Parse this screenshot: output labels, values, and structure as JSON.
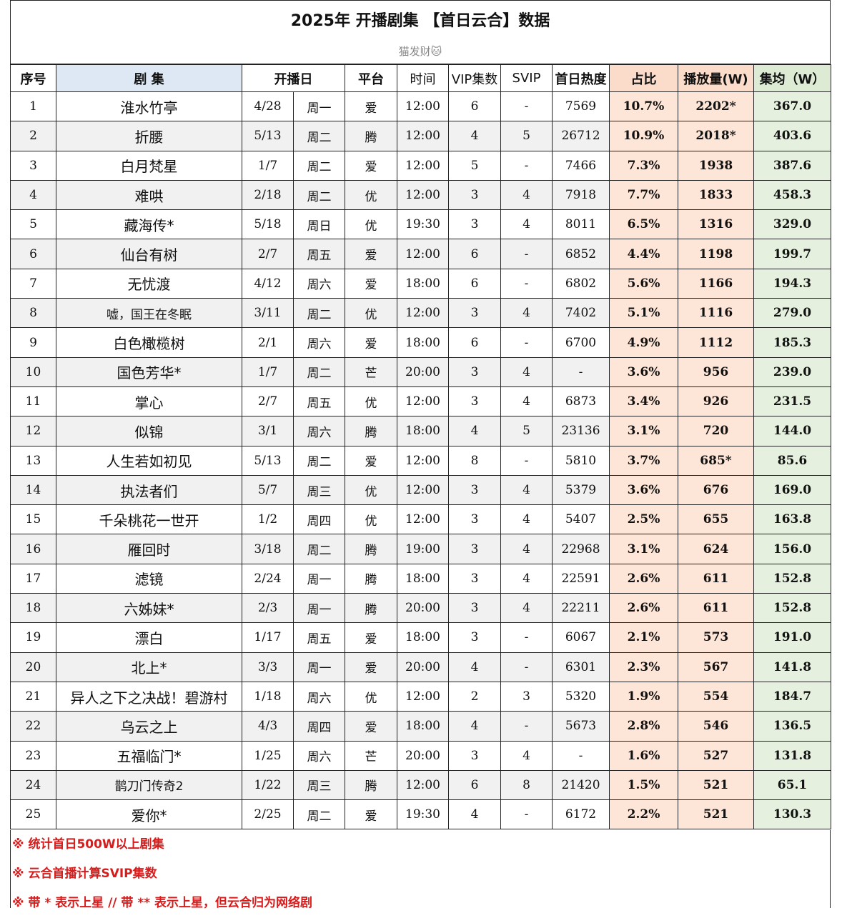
{
  "title": "2025年 开播剧集 【首日云合】数据",
  "author": "猫发财🐱",
  "headers": {
    "no": "序号",
    "name": "剧 集",
    "date": "开播日",
    "plat": "平台",
    "time": "时间",
    "vip": "VIP集数",
    "svip": "SVIP",
    "heat": "首日热度",
    "pct": "占比",
    "play": "播放量(W)",
    "avg": "集均（W）"
  },
  "rows": [
    {
      "no": "1",
      "name": "淮水竹亭",
      "date": "4/28",
      "wd": "周一",
      "plat": "爱",
      "time": "12:00",
      "vip": "6",
      "svip": "-",
      "heat": "7569",
      "pct": "10.7%",
      "play": "2202*",
      "avg": "367.0"
    },
    {
      "no": "2",
      "name": "折腰",
      "date": "5/13",
      "wd": "周二",
      "plat": "腾",
      "time": "12:00",
      "vip": "4",
      "svip": "5",
      "heat": "26712",
      "pct": "10.9%",
      "play": "2018*",
      "avg": "403.6"
    },
    {
      "no": "3",
      "name": "白月梵星",
      "date": "1/7",
      "wd": "周二",
      "plat": "爱",
      "time": "12:00",
      "vip": "5",
      "svip": "-",
      "heat": "7466",
      "pct": "7.3%",
      "play": "1938",
      "avg": "387.6"
    },
    {
      "no": "4",
      "name": "难哄",
      "date": "2/18",
      "wd": "周二",
      "plat": "优",
      "time": "12:00",
      "vip": "3",
      "svip": "4",
      "heat": "7918",
      "pct": "7.7%",
      "play": "1833",
      "avg": "458.3"
    },
    {
      "no": "5",
      "name": "藏海传*",
      "date": "5/18",
      "wd": "周日",
      "plat": "优",
      "time": "19:30",
      "vip": "3",
      "svip": "4",
      "heat": "8011",
      "pct": "6.5%",
      "play": "1316",
      "avg": "329.0"
    },
    {
      "no": "6",
      "name": "仙台有树",
      "date": "2/7",
      "wd": "周五",
      "plat": "爱",
      "time": "12:00",
      "vip": "6",
      "svip": "-",
      "heat": "6852",
      "pct": "4.4%",
      "play": "1198",
      "avg": "199.7"
    },
    {
      "no": "7",
      "name": "无忧渡",
      "date": "4/12",
      "wd": "周六",
      "plat": "爱",
      "time": "18:00",
      "vip": "6",
      "svip": "-",
      "heat": "6802",
      "pct": "5.6%",
      "play": "1166",
      "avg": "194.3"
    },
    {
      "no": "8",
      "name": "嘘，国王在冬眠",
      "date": "3/11",
      "wd": "周二",
      "plat": "优",
      "time": "12:00",
      "vip": "3",
      "svip": "4",
      "heat": "7402",
      "pct": "5.1%",
      "play": "1116",
      "avg": "279.0"
    },
    {
      "no": "9",
      "name": "白色橄榄树",
      "date": "2/1",
      "wd": "周六",
      "plat": "爱",
      "time": "18:00",
      "vip": "6",
      "svip": "-",
      "heat": "6700",
      "pct": "4.9%",
      "play": "1112",
      "avg": "185.3"
    },
    {
      "no": "10",
      "name": "国色芳华*",
      "date": "1/7",
      "wd": "周二",
      "plat": "芒",
      "time": "20:00",
      "vip": "3",
      "svip": "4",
      "heat": "-",
      "pct": "3.6%",
      "play": "956",
      "avg": "239.0"
    },
    {
      "no": "11",
      "name": "掌心",
      "date": "2/7",
      "wd": "周五",
      "plat": "优",
      "time": "12:00",
      "vip": "3",
      "svip": "4",
      "heat": "6873",
      "pct": "3.4%",
      "play": "926",
      "avg": "231.5"
    },
    {
      "no": "12",
      "name": "似锦",
      "date": "3/1",
      "wd": "周六",
      "plat": "腾",
      "time": "18:00",
      "vip": "4",
      "svip": "5",
      "heat": "23136",
      "pct": "3.1%",
      "play": "720",
      "avg": "144.0"
    },
    {
      "no": "13",
      "name": "人生若如初见",
      "date": "5/13",
      "wd": "周二",
      "plat": "爱",
      "time": "12:00",
      "vip": "8",
      "svip": "-",
      "heat": "5810",
      "pct": "3.7%",
      "play": "685*",
      "avg": "85.6"
    },
    {
      "no": "14",
      "name": "执法者们",
      "date": "5/7",
      "wd": "周三",
      "plat": "优",
      "time": "12:00",
      "vip": "3",
      "svip": "4",
      "heat": "5379",
      "pct": "3.6%",
      "play": "676",
      "avg": "169.0"
    },
    {
      "no": "15",
      "name": "千朵桃花一世开",
      "date": "1/2",
      "wd": "周四",
      "plat": "优",
      "time": "12:00",
      "vip": "3",
      "svip": "4",
      "heat": "5407",
      "pct": "2.5%",
      "play": "655",
      "avg": "163.8"
    },
    {
      "no": "16",
      "name": "雁回时",
      "date": "3/18",
      "wd": "周二",
      "plat": "腾",
      "time": "19:00",
      "vip": "3",
      "svip": "4",
      "heat": "22968",
      "pct": "3.1%",
      "play": "624",
      "avg": "156.0"
    },
    {
      "no": "17",
      "name": "滤镜",
      "date": "2/24",
      "wd": "周一",
      "plat": "腾",
      "time": "18:00",
      "vip": "3",
      "svip": "4",
      "heat": "22591",
      "pct": "2.6%",
      "play": "611",
      "avg": "152.8"
    },
    {
      "no": "18",
      "name": "六姊妹*",
      "date": "2/3",
      "wd": "周一",
      "plat": "腾",
      "time": "20:00",
      "vip": "3",
      "svip": "4",
      "heat": "22211",
      "pct": "2.6%",
      "play": "611",
      "avg": "152.8"
    },
    {
      "no": "19",
      "name": "漂白",
      "date": "1/17",
      "wd": "周五",
      "plat": "爱",
      "time": "18:00",
      "vip": "3",
      "svip": "-",
      "heat": "6067",
      "pct": "2.1%",
      "play": "573",
      "avg": "191.0"
    },
    {
      "no": "20",
      "name": "北上*",
      "date": "3/3",
      "wd": "周一",
      "plat": "爱",
      "time": "20:00",
      "vip": "4",
      "svip": "-",
      "heat": "6301",
      "pct": "2.3%",
      "play": "567",
      "avg": "141.8"
    },
    {
      "no": "21",
      "name": "异人之下之决战！碧游村",
      "date": "1/18",
      "wd": "周六",
      "plat": "优",
      "time": "12:00",
      "vip": "2",
      "svip": "3",
      "heat": "5320",
      "pct": "1.9%",
      "play": "554",
      "avg": "184.7"
    },
    {
      "no": "22",
      "name": "乌云之上",
      "date": "4/3",
      "wd": "周四",
      "plat": "爱",
      "time": "18:00",
      "vip": "4",
      "svip": "-",
      "heat": "5673",
      "pct": "2.8%",
      "play": "546",
      "avg": "136.5"
    },
    {
      "no": "23",
      "name": "五福临门*",
      "date": "1/25",
      "wd": "周六",
      "plat": "芒",
      "time": "20:00",
      "vip": "3",
      "svip": "4",
      "heat": "-",
      "pct": "1.6%",
      "play": "527",
      "avg": "131.8"
    },
    {
      "no": "24",
      "name": "鹊刀门传奇2",
      "date": "1/22",
      "wd": "周三",
      "plat": "腾",
      "time": "12:00",
      "vip": "6",
      "svip": "8",
      "heat": "21420",
      "pct": "1.5%",
      "play": "521",
      "avg": "65.1"
    },
    {
      "no": "25",
      "name": "爱你*",
      "date": "2/25",
      "wd": "周二",
      "plat": "爱",
      "time": "19:30",
      "vip": "4",
      "svip": "-",
      "heat": "6172",
      "pct": "2.2%",
      "play": "521",
      "avg": "130.3"
    }
  ],
  "notes": [
    "※ 统计首日500W以上剧集",
    "※ 云合首播计算SVIP集数",
    "※ 带 * 表示上星 // 带 ** 表示上星，但云合归为网络剧"
  ]
}
